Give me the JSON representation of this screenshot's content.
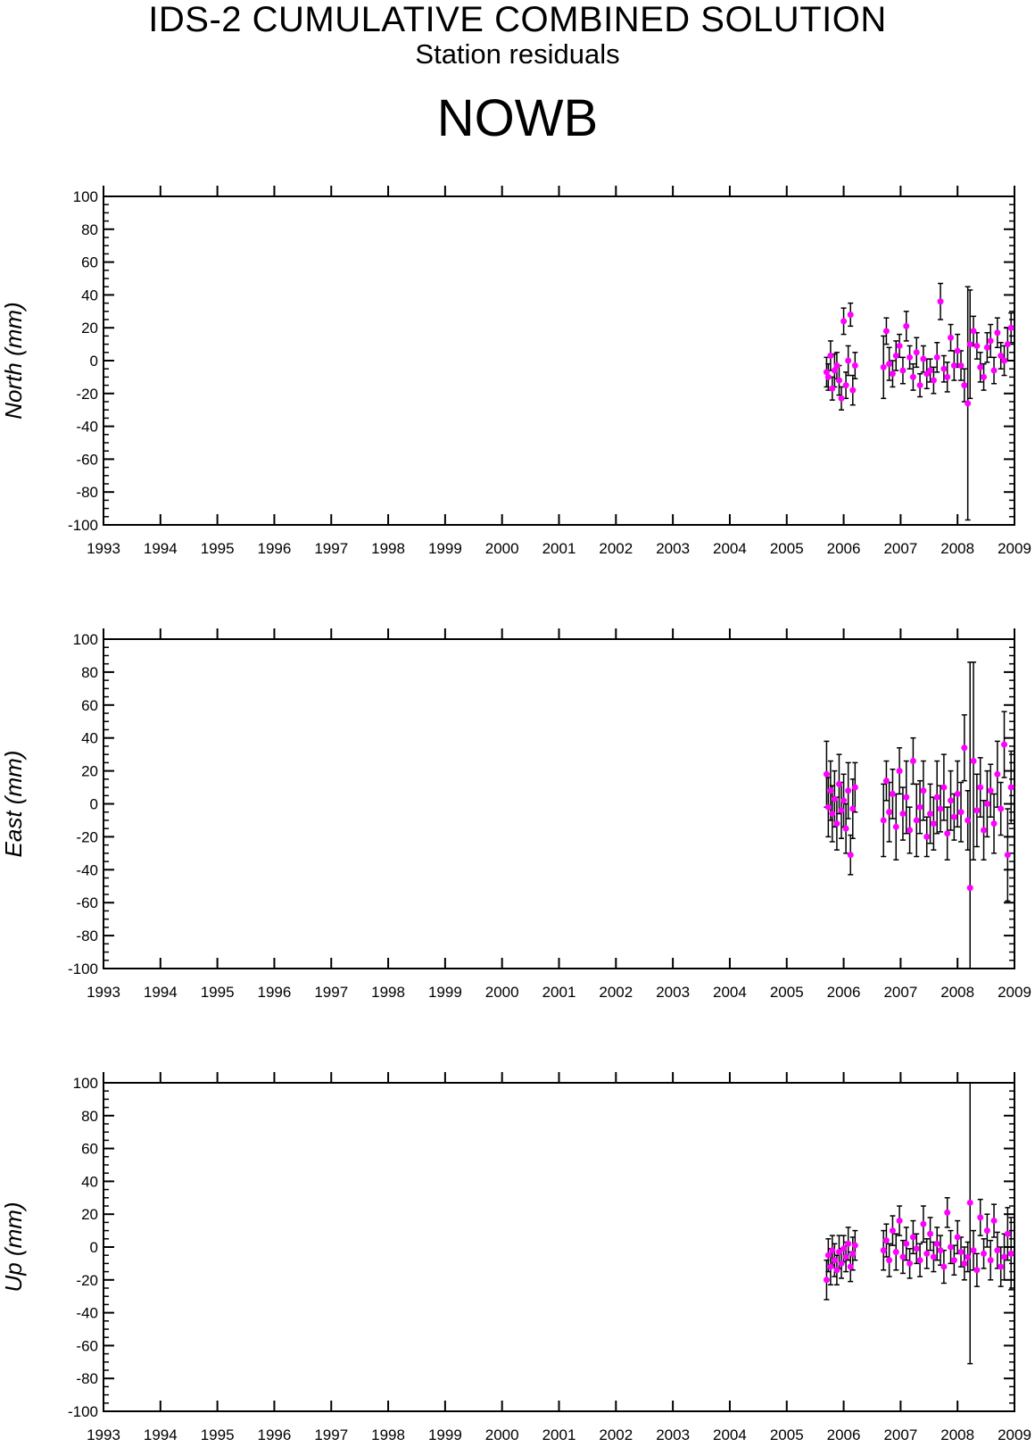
{
  "header": {
    "title": "IDS-2 CUMULATIVE COMBINED SOLUTION",
    "subtitle": "Station residuals",
    "station": "NOWB"
  },
  "colors": {
    "marker": "#ff00ff",
    "errorbar": "#000000",
    "axes": "#000000"
  },
  "chart_data": [
    {
      "type": "scatter",
      "ylabel": "North (mm)",
      "xlim": [
        1993,
        2009
      ],
      "ylim": [
        -100,
        100
      ],
      "xticks": [
        1993,
        1994,
        1995,
        1996,
        1997,
        1998,
        1999,
        2000,
        2001,
        2002,
        2003,
        2004,
        2005,
        2006,
        2007,
        2008,
        2009
      ],
      "yticks": [
        -100,
        -80,
        -60,
        -40,
        -20,
        0,
        20,
        40,
        60,
        80,
        100
      ],
      "grid": false,
      "series": [
        {
          "x": [
            2005.7,
            2005.73,
            2005.77,
            2005.8,
            2005.84,
            2005.88,
            2005.92,
            2005.96,
            2006.0,
            2006.04,
            2006.08,
            2006.12,
            2006.16,
            2006.2,
            2006.7,
            2006.75,
            2006.8,
            2006.86,
            2006.92,
            2006.98,
            2007.04,
            2007.1,
            2007.16,
            2007.22,
            2007.28,
            2007.34,
            2007.4,
            2007.46,
            2007.52,
            2007.58,
            2007.64,
            2007.7,
            2007.76,
            2007.82,
            2007.88,
            2007.94,
            2008.0,
            2008.06,
            2008.12,
            2008.18,
            2008.22,
            2008.28,
            2008.34,
            2008.4,
            2008.46,
            2008.52,
            2008.58,
            2008.64,
            2008.7,
            2008.76,
            2008.82,
            2008.88,
            2008.94
          ],
          "y": [
            -7,
            -10,
            3,
            -17,
            -6,
            -3,
            -12,
            -23,
            24,
            -15,
            0,
            28,
            -18,
            -3,
            -4,
            18,
            -2,
            -8,
            3,
            9,
            -6,
            21,
            2,
            -10,
            5,
            -15,
            1,
            -8,
            -6,
            -12,
            2,
            36,
            -5,
            -10,
            14,
            -3,
            6,
            -3,
            -15,
            -26,
            10,
            18,
            9,
            -4,
            -10,
            8,
            12,
            -6,
            17,
            3,
            0,
            10,
            20
          ],
          "err": [
            9,
            8,
            9,
            7,
            10,
            8,
            9,
            7,
            8,
            8,
            9,
            7,
            9,
            8,
            19,
            8,
            10,
            8,
            9,
            7,
            8,
            9,
            7,
            8,
            9,
            7,
            8,
            9,
            7,
            8,
            9,
            11,
            8,
            9,
            8,
            9,
            10,
            9,
            10,
            71,
            33,
            9,
            8,
            9,
            8,
            9,
            10,
            8,
            9,
            8,
            9,
            10,
            9
          ]
        }
      ]
    },
    {
      "type": "scatter",
      "ylabel": "East (mm)",
      "xlim": [
        1993,
        2009
      ],
      "ylim": [
        -100,
        100
      ],
      "xticks": [
        1993,
        1994,
        1995,
        1996,
        1997,
        1998,
        1999,
        2000,
        2001,
        2002,
        2003,
        2004,
        2005,
        2006,
        2007,
        2008,
        2009
      ],
      "yticks": [
        -100,
        -80,
        -60,
        -40,
        -20,
        0,
        20,
        40,
        60,
        80,
        100
      ],
      "grid": false,
      "series": [
        {
          "x": [
            2005.7,
            2005.73,
            2005.77,
            2005.8,
            2005.84,
            2005.88,
            2005.92,
            2005.96,
            2006.0,
            2006.04,
            2006.08,
            2006.12,
            2006.16,
            2006.2,
            2006.7,
            2006.75,
            2006.8,
            2006.86,
            2006.92,
            2006.98,
            2007.04,
            2007.1,
            2007.16,
            2007.22,
            2007.28,
            2007.34,
            2007.4,
            2007.46,
            2007.52,
            2007.58,
            2007.64,
            2007.7,
            2007.76,
            2007.82,
            2007.88,
            2007.94,
            2008.0,
            2008.06,
            2008.12,
            2008.18,
            2008.22,
            2008.28,
            2008.34,
            2008.4,
            2008.46,
            2008.52,
            2008.58,
            2008.64,
            2008.7,
            2008.76,
            2008.82,
            2008.88,
            2008.94
          ],
          "y": [
            18,
            -2,
            8,
            -6,
            3,
            -12,
            12,
            -4,
            2,
            -15,
            8,
            -31,
            -3,
            10,
            -10,
            14,
            -5,
            6,
            -14,
            20,
            -6,
            4,
            -16,
            26,
            -10,
            -2,
            8,
            -20,
            -6,
            -12,
            4,
            -3,
            10,
            -18,
            2,
            -8,
            6,
            -5,
            34,
            -10,
            -51,
            26,
            -4,
            10,
            -16,
            0,
            8,
            -12,
            18,
            -3,
            36,
            -31,
            10
          ],
          "err": [
            20,
            18,
            18,
            17,
            17,
            16,
            18,
            17,
            16,
            15,
            17,
            12,
            18,
            15,
            22,
            12,
            18,
            15,
            20,
            14,
            16,
            22,
            14,
            14,
            22,
            16,
            18,
            12,
            18,
            16,
            22,
            14,
            20,
            16,
            18,
            14,
            20,
            18,
            20,
            18,
            137,
            60,
            22,
            18,
            18,
            20,
            16,
            18,
            20,
            16,
            20,
            28,
            22
          ]
        }
      ]
    },
    {
      "type": "scatter",
      "ylabel": "Up (mm)",
      "xlim": [
        1993,
        2009
      ],
      "ylim": [
        -100,
        100
      ],
      "xticks": [
        1993,
        1994,
        1995,
        1996,
        1997,
        1998,
        1999,
        2000,
        2001,
        2002,
        2003,
        2004,
        2005,
        2006,
        2007,
        2008,
        2009
      ],
      "yticks": [
        -100,
        -80,
        -60,
        -40,
        -20,
        0,
        20,
        40,
        60,
        80,
        100
      ],
      "grid": false,
      "series": [
        {
          "x": [
            2005.7,
            2005.73,
            2005.77,
            2005.8,
            2005.84,
            2005.88,
            2005.92,
            2005.96,
            2006.0,
            2006.04,
            2006.08,
            2006.12,
            2006.16,
            2006.2,
            2006.7,
            2006.75,
            2006.8,
            2006.86,
            2006.92,
            2006.98,
            2007.04,
            2007.1,
            2007.16,
            2007.22,
            2007.28,
            2007.34,
            2007.4,
            2007.46,
            2007.52,
            2007.58,
            2007.64,
            2007.7,
            2007.76,
            2007.82,
            2007.88,
            2007.94,
            2008.0,
            2008.06,
            2008.12,
            2008.18,
            2008.22,
            2008.28,
            2008.34,
            2008.4,
            2008.46,
            2008.52,
            2008.58,
            2008.64,
            2008.7,
            2008.76,
            2008.82,
            2008.88,
            2008.94
          ],
          "y": [
            -20,
            -5,
            -12,
            -2,
            -8,
            -14,
            -3,
            -10,
            -1,
            -6,
            2,
            -12,
            -4,
            1,
            -2,
            4,
            -8,
            10,
            -3,
            16,
            -6,
            2,
            -10,
            6,
            -1,
            -8,
            14,
            -4,
            8,
            -6,
            2,
            -2,
            -12,
            21,
            0,
            -8,
            6,
            -3,
            -10,
            -6,
            27,
            -2,
            -14,
            18,
            -4,
            10,
            -8,
            16,
            -2,
            -12,
            -6,
            8,
            -4
          ],
          "err": [
            12,
            10,
            11,
            9,
            10,
            9,
            10,
            9,
            8,
            9,
            10,
            9,
            10,
            9,
            12,
            10,
            10,
            9,
            11,
            9,
            10,
            10,
            9,
            10,
            9,
            10,
            11,
            9,
            10,
            9,
            10,
            9,
            10,
            9,
            10,
            9,
            10,
            9,
            10,
            9,
            98,
            12,
            10,
            11,
            9,
            10,
            12,
            10,
            11,
            12,
            14,
            16,
            22
          ]
        }
      ]
    }
  ]
}
